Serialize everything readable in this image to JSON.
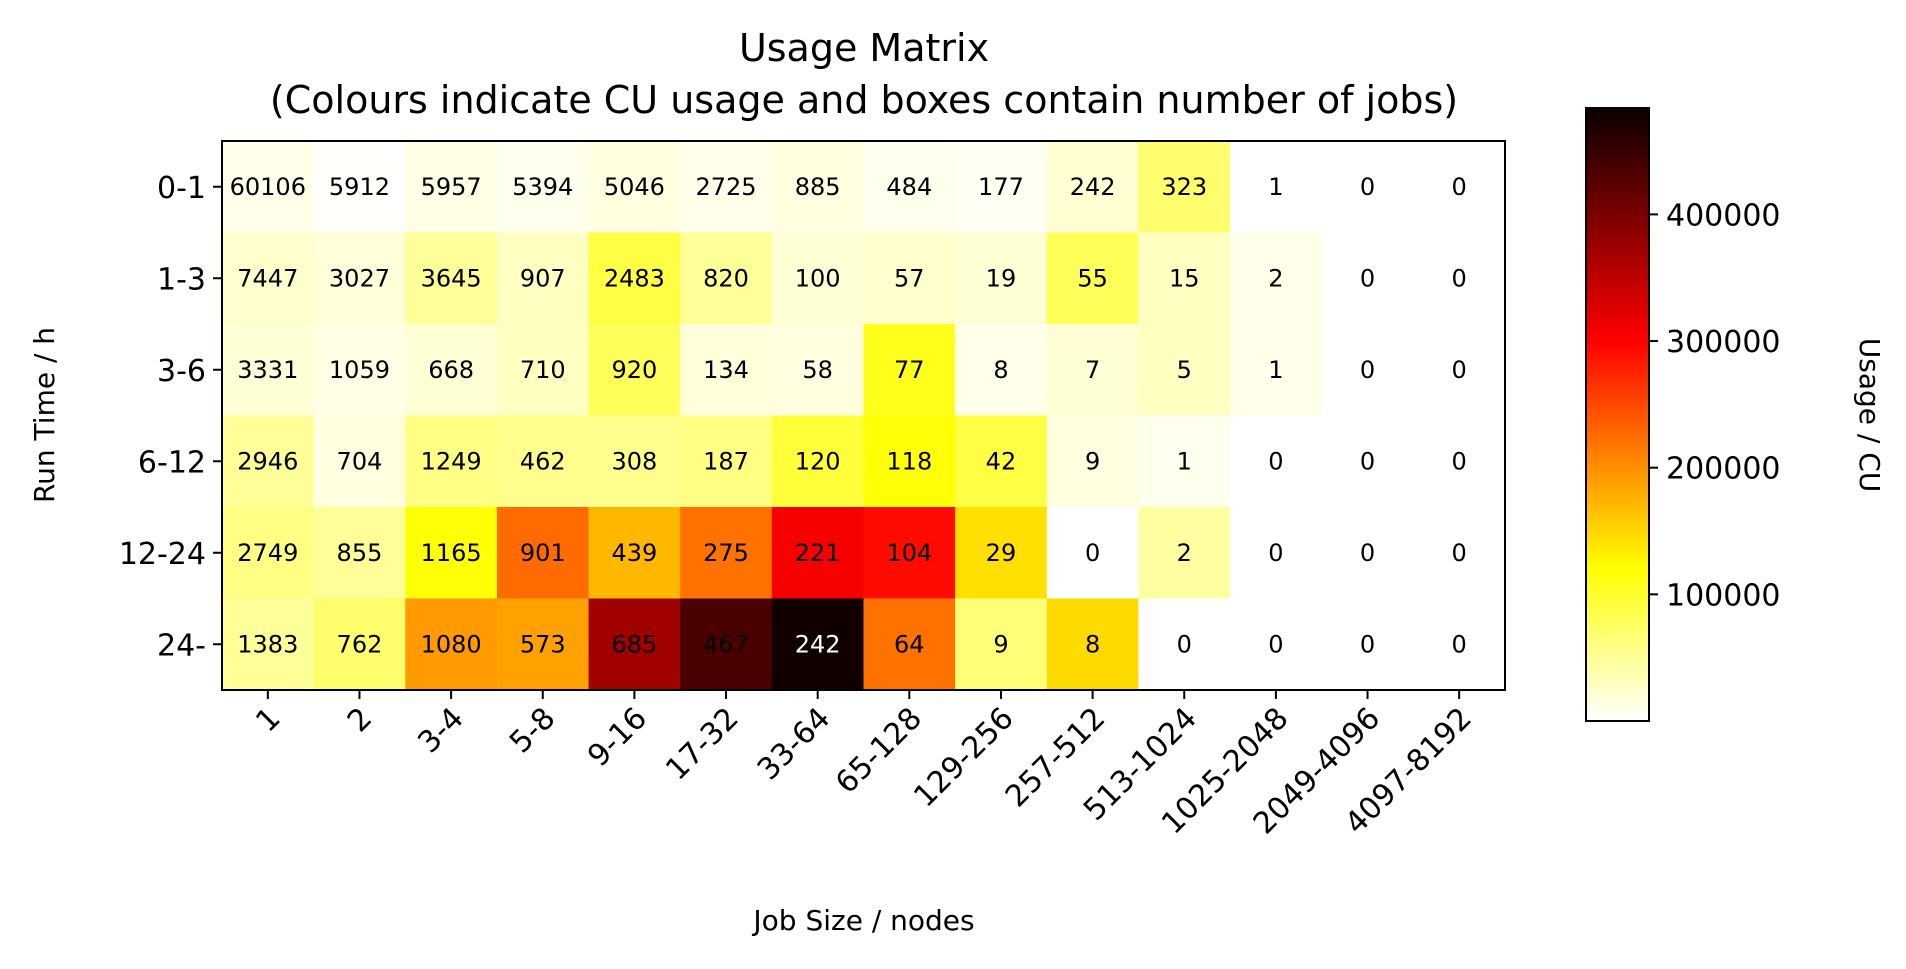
{
  "chart_data": {
    "type": "heatmap",
    "title": "Usage Matrix",
    "subtitle": "(Colours indicate CU usage and boxes contain number of jobs)",
    "xlabel": "Job Size / nodes",
    "ylabel": "Run Time / h",
    "colorbar_label": "Usage / CU",
    "colormap": "hot_r",
    "x_categories": [
      "1",
      "2",
      "3-4",
      "5-8",
      "9-16",
      "17-32",
      "33-64",
      "65-128",
      "129-256",
      "257-512",
      "513-1024",
      "1025-2048",
      "2049-4096",
      "4097-8192"
    ],
    "y_categories": [
      "0-1",
      "1-3",
      "3-6",
      "6-12",
      "12-24",
      "24-"
    ],
    "job_counts": [
      [
        60106,
        5912,
        5957,
        5394,
        5046,
        2725,
        885,
        484,
        177,
        242,
        323,
        1,
        0,
        0
      ],
      [
        7447,
        3027,
        3645,
        907,
        2483,
        820,
        100,
        57,
        19,
        55,
        15,
        2,
        0,
        0
      ],
      [
        3331,
        1059,
        668,
        710,
        920,
        134,
        58,
        77,
        8,
        7,
        5,
        1,
        0,
        0
      ],
      [
        2946,
        704,
        1249,
        462,
        308,
        187,
        120,
        118,
        42,
        9,
        1,
        0,
        0,
        0
      ],
      [
        2749,
        855,
        1165,
        901,
        439,
        275,
        221,
        104,
        29,
        0,
        2,
        0,
        0,
        0
      ],
      [
        1383,
        762,
        1080,
        573,
        685,
        467,
        242,
        64,
        9,
        8,
        0,
        0,
        0,
        0
      ]
    ],
    "usage_cu": [
      [
        10000,
        2000,
        12000,
        8000,
        15000,
        10000,
        15000,
        8000,
        6000,
        22000,
        70000,
        0,
        0,
        0
      ],
      [
        25000,
        18000,
        50000,
        30000,
        90000,
        50000,
        20000,
        25000,
        20000,
        80000,
        30000,
        10000,
        0,
        0
      ],
      [
        20000,
        12000,
        20000,
        30000,
        80000,
        18000,
        15000,
        110000,
        10000,
        20000,
        30000,
        10000,
        0,
        0
      ],
      [
        50000,
        15000,
        60000,
        55000,
        55000,
        60000,
        95000,
        120000,
        90000,
        15000,
        8000,
        0,
        0,
        0
      ],
      [
        60000,
        50000,
        120000,
        230000,
        175000,
        225000,
        320000,
        300000,
        145000,
        0,
        45000,
        0,
        0,
        0
      ],
      [
        50000,
        70000,
        195000,
        190000,
        380000,
        440000,
        480000,
        225000,
        65000,
        150000,
        0,
        0,
        0,
        0
      ]
    ],
    "colorbar_range": [
      0,
      484000
    ],
    "colorbar_ticks": [
      100000,
      200000,
      300000,
      400000
    ],
    "colorbar_tick_labels": [
      "100000",
      "200000",
      "300000",
      "400000"
    ]
  }
}
